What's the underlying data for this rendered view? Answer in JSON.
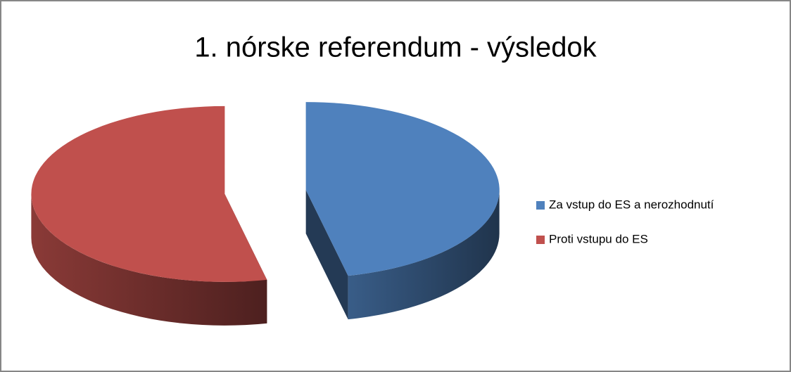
{
  "chart_data": {
    "type": "pie",
    "title": "1. nórske referendum - výsledok",
    "categories": [
      "Za vstup do ES a nerozhodnutí",
      "Proti vstupu do ES"
    ],
    "values": [
      46.5,
      53.5
    ],
    "colors": [
      "#4f81bd",
      "#c0504d"
    ],
    "legend": "right"
  }
}
